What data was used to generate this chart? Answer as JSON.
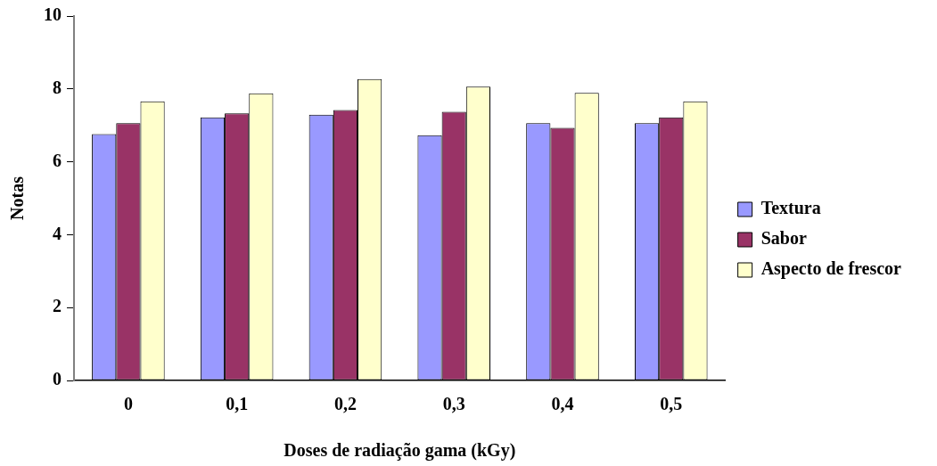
{
  "chart_data": {
    "type": "bar",
    "xlabel": "Doses de radiação gama (kGy)",
    "ylabel": "Notas",
    "categories": [
      "0",
      "0,1",
      "0,2",
      "0,3",
      "0,4",
      "0,5"
    ],
    "series": [
      {
        "name": "Textura",
        "color": "#9999ff",
        "values": [
          6.76,
          7.22,
          7.29,
          6.73,
          7.06,
          7.06
        ]
      },
      {
        "name": "Sabor",
        "color": "#993366",
        "values": [
          7.06,
          7.33,
          7.42,
          7.37,
          6.93,
          7.22
        ]
      },
      {
        "name": "Aspecto de frescor",
        "color": "#ffffcc",
        "values": [
          7.66,
          7.88,
          8.27,
          8.06,
          7.89,
          7.66
        ]
      }
    ],
    "ylim": [
      0,
      10
    ],
    "yticks": [
      0,
      2,
      4,
      6,
      8,
      10
    ],
    "grid": false,
    "legend": "right"
  }
}
